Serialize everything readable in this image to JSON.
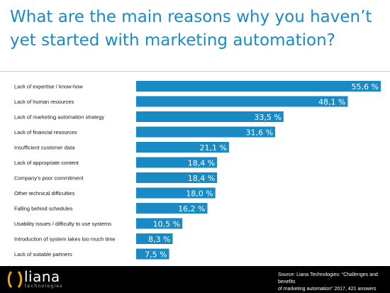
{
  "title": "What are the main reasons why you haven’t yet started with marketing automation?",
  "chart_data": {
    "type": "bar",
    "orientation": "horizontal",
    "categories": [
      "Lack of expertise / know-how",
      "Lack of human resources",
      "Lack of marketing automation strategy",
      "Lack of financial resources",
      "Insufficient customer data",
      "Lack of appropriate content",
      "Company’s poor commitment",
      "Other technical difficulties",
      "Falling behind schedules",
      "Usability issues / difficulty to use systems",
      "Introduction of system takes too much time",
      "Lack of suitable partners"
    ],
    "values": [
      55.6,
      48.1,
      33.5,
      31.6,
      21.1,
      18.4,
      18.4,
      18.0,
      16.2,
      10.5,
      8.3,
      7.5
    ],
    "value_labels": [
      "55,6 %",
      "48,1 %",
      "33,5 %",
      "31,6 %",
      "21,1 %",
      "18,4 %",
      "18,4 %",
      "18,0 %",
      "16,2 %",
      "10,5 %",
      "8,3 %",
      "7,5 %"
    ],
    "xlim": [
      0,
      55.6
    ],
    "grid": false,
    "bar_color": "#1a8ac4"
  },
  "footer": {
    "brand": "liana",
    "brand_sub": "technologies",
    "source_line1": "Source: Liana Technologies: “Challenges and benefits",
    "source_line2": "of marketing automation” 2017, 421 answers"
  }
}
